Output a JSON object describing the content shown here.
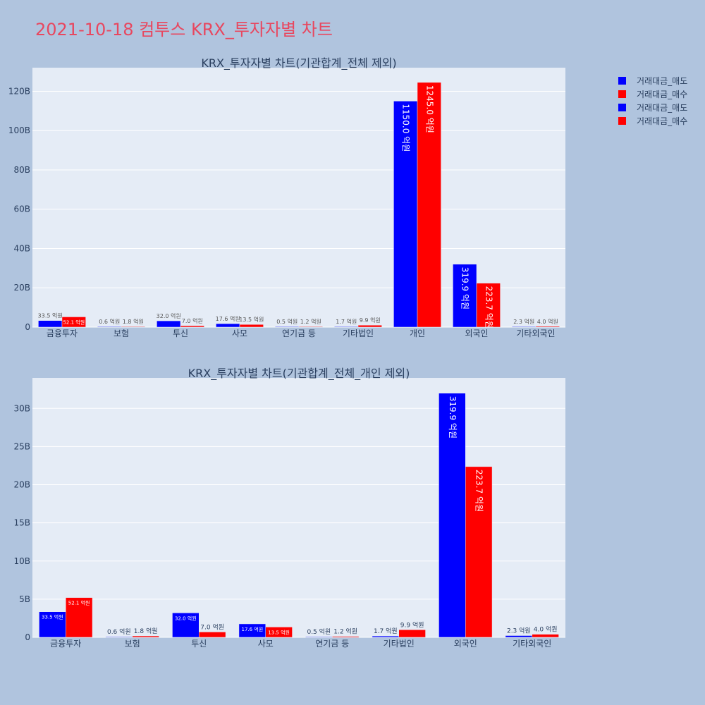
{
  "page_title": "2021-10-18 컴투스 KRX_투자자별 차트",
  "legend": [
    {
      "label": "거래대금_매도",
      "color": "#0000ff"
    },
    {
      "label": "거래대금_매수",
      "color": "#ff0000"
    },
    {
      "label": "거래대금_매도",
      "color": "#0000ff"
    },
    {
      "label": "거래대금_매수",
      "color": "#ff0000"
    }
  ],
  "chart_data": [
    {
      "type": "bar",
      "title": "KRX_투자자별 차트(기관합계_전체 제외)",
      "categories": [
        "금융투자",
        "보험",
        "투신",
        "사모",
        "연기금 등",
        "기타법인",
        "개인",
        "외국인",
        "기타외국인"
      ],
      "ylim": [
        0,
        132
      ],
      "yticks": [
        0,
        20,
        40,
        60,
        80,
        100,
        120
      ],
      "ytick_labels": [
        "0",
        "20B",
        "40B",
        "60B",
        "80B",
        "100B",
        "120B"
      ],
      "series": [
        {
          "name": "거래대금_매도",
          "color": "#0000ff",
          "values": [
            3.35,
            0.06,
            3.2,
            1.76,
            0.05,
            0.17,
            115.0,
            31.99,
            0.23
          ],
          "labels": [
            "33.5 억원",
            "0.6 억원",
            "32.0 억원",
            "17.6 억원",
            "0.5 억원",
            "1.7 억원",
            "1150.0 억원",
            "319.9 억원",
            "2.3 억원"
          ]
        },
        {
          "name": "거래대금_매수",
          "color": "#ff0000",
          "values": [
            5.21,
            0.18,
            0.7,
            1.35,
            0.12,
            0.99,
            124.5,
            22.37,
            0.4
          ],
          "labels": [
            "52.1 억원",
            "1.8 억원",
            "7.0 억원",
            "13.5 억원",
            "1.2 억원",
            "9.9 억원",
            "1245.0 억원",
            "223.7 억원",
            "4.0 억원"
          ]
        }
      ]
    },
    {
      "type": "bar",
      "title": "KRX_투자자별 차트(기관합계_전체_개인 제외)",
      "categories": [
        "금융투자",
        "보험",
        "투신",
        "사모",
        "연기금 등",
        "기타법인",
        "외국인",
        "기타외국인"
      ],
      "ylim": [
        0,
        34
      ],
      "yticks": [
        0,
        5,
        10,
        15,
        20,
        25,
        30
      ],
      "ytick_labels": [
        "0",
        "5B",
        "10B",
        "15B",
        "20B",
        "25B",
        "30B"
      ],
      "series": [
        {
          "name": "거래대금_매도",
          "color": "#0000ff",
          "values": [
            3.35,
            0.06,
            3.2,
            1.76,
            0.05,
            0.17,
            31.99,
            0.23
          ],
          "labels": [
            "33.5 억원",
            "0.6 억원",
            "32.0 억원",
            "17.6 억원",
            "0.5 억원",
            "1.7 억원",
            "319.9 억원",
            "2.3 억원"
          ]
        },
        {
          "name": "거래대금_매수",
          "color": "#ff0000",
          "values": [
            5.21,
            0.18,
            0.7,
            1.35,
            0.12,
            0.99,
            22.37,
            0.4
          ],
          "labels": [
            "52.1 억원",
            "1.8 억원",
            "7.0 억원",
            "13.5 억원",
            "1.2 억원",
            "9.9 억원",
            "223.7 억원",
            "4.0 억원"
          ]
        }
      ]
    }
  ]
}
